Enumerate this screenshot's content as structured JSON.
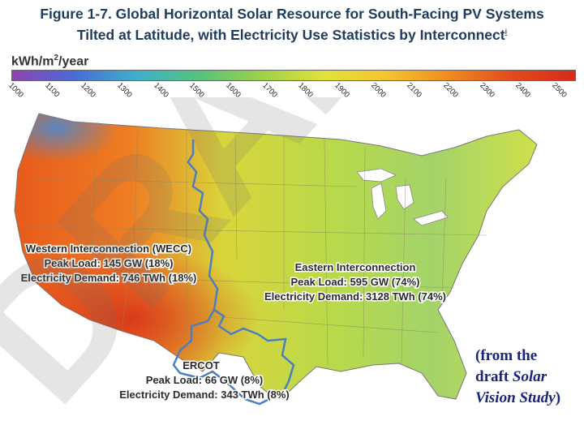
{
  "title": {
    "line1": "Figure 1-7. Global Horizontal Solar Resource for South-Facing PV Systems",
    "line2": "Tilted at Latitude, with Electricity Use Statistics by Interconnect",
    "footnote_mark": "i"
  },
  "legend": {
    "unit_prefix": "kWh/m",
    "unit_exp": "2",
    "unit_suffix": "/year",
    "ticks": [
      "1000",
      "1100",
      "1200",
      "1300",
      "1400",
      "1500",
      "1600",
      "1700",
      "1800",
      "1900",
      "2000",
      "2100",
      "2200",
      "2300",
      "2400",
      "2500"
    ],
    "colors": [
      "#8e44ad",
      "#4a6bd6",
      "#3fb0c8",
      "#57c27d",
      "#9fd14a",
      "#e3e23a",
      "#f4c430",
      "#f08a1f",
      "#e24a1c",
      "#d62b1a"
    ]
  },
  "regions": {
    "wecc": {
      "name": "Western Interconnection (WECC)",
      "peak": "Peak Load: 145 GW (18%)",
      "demand": "Electricity Demand: 746 TWh (18%)"
    },
    "eastern": {
      "name": "Eastern Interconnection",
      "peak": "Peak Load: 595 GW (74%)",
      "demand": "Electricity Demand: 3128 TWh (74%)"
    },
    "ercot": {
      "name": "ERCOT",
      "peak": "Peak Load: 66 GW (8%)",
      "demand": "Electricity Demand: 343 TWh (8%)"
    }
  },
  "watermark": "DRAFT",
  "credit": {
    "pre": "(from the",
    "draft": "draft ",
    "italic1": "Solar",
    "italic2": "Vision Study",
    "post": ")"
  },
  "colors": {
    "title": "#1f3b5c",
    "interconnect_border": "#4a7fc1",
    "credit": "#1a237e"
  }
}
